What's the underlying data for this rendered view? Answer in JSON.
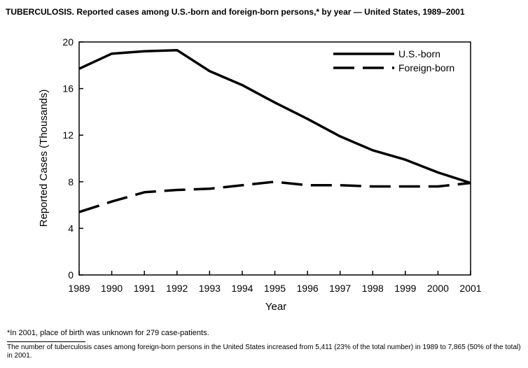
{
  "header": {
    "topic": "TUBERCULOSIS.",
    "subtitle": "Reported cases among U.S.-born and foreign-born persons,* by year — United States, 1989–2001"
  },
  "chart_data": {
    "type": "line",
    "title": "TUBERCULOSIS. Reported cases among U.S.-born and foreign-born persons,* by year — United States, 1989–2001",
    "xlabel": "Year",
    "ylabel": "Reported Cases (Thousands)",
    "x": [
      1989,
      1990,
      1991,
      1992,
      1993,
      1994,
      1995,
      1996,
      1997,
      1998,
      1999,
      2000,
      2001
    ],
    "xticks": [
      "1989",
      "1990",
      "1991",
      "1992",
      "1993",
      "1994",
      "1995",
      "1996",
      "1997",
      "1998",
      "1999",
      "2000",
      "2001"
    ],
    "yticks": [
      "0",
      "4",
      "8",
      "12",
      "16",
      "20"
    ],
    "ylim": [
      0,
      20
    ],
    "grid": false,
    "legend_position": "top-right",
    "series": [
      {
        "name": "U.S.-born",
        "style": "solid",
        "color": "#000000",
        "values": [
          17.7,
          19.0,
          19.2,
          19.3,
          17.5,
          16.3,
          14.8,
          13.4,
          11.9,
          10.7,
          9.9,
          8.8,
          7.9
        ]
      },
      {
        "name": "Foreign-born",
        "style": "dashed",
        "color": "#000000",
        "values": [
          5.4,
          6.3,
          7.1,
          7.3,
          7.4,
          7.7,
          8.0,
          7.7,
          7.7,
          7.6,
          7.6,
          7.6,
          7.9
        ]
      }
    ]
  },
  "footnote": "*In 2001, place of birth was unknown for 279 case-patients.",
  "summary": "The number of tuberculosis cases among foreign-born persons in the United States increased from 5,411 (23% of the total number) in 1989 to 7,865 (50% of the total) in 2001."
}
